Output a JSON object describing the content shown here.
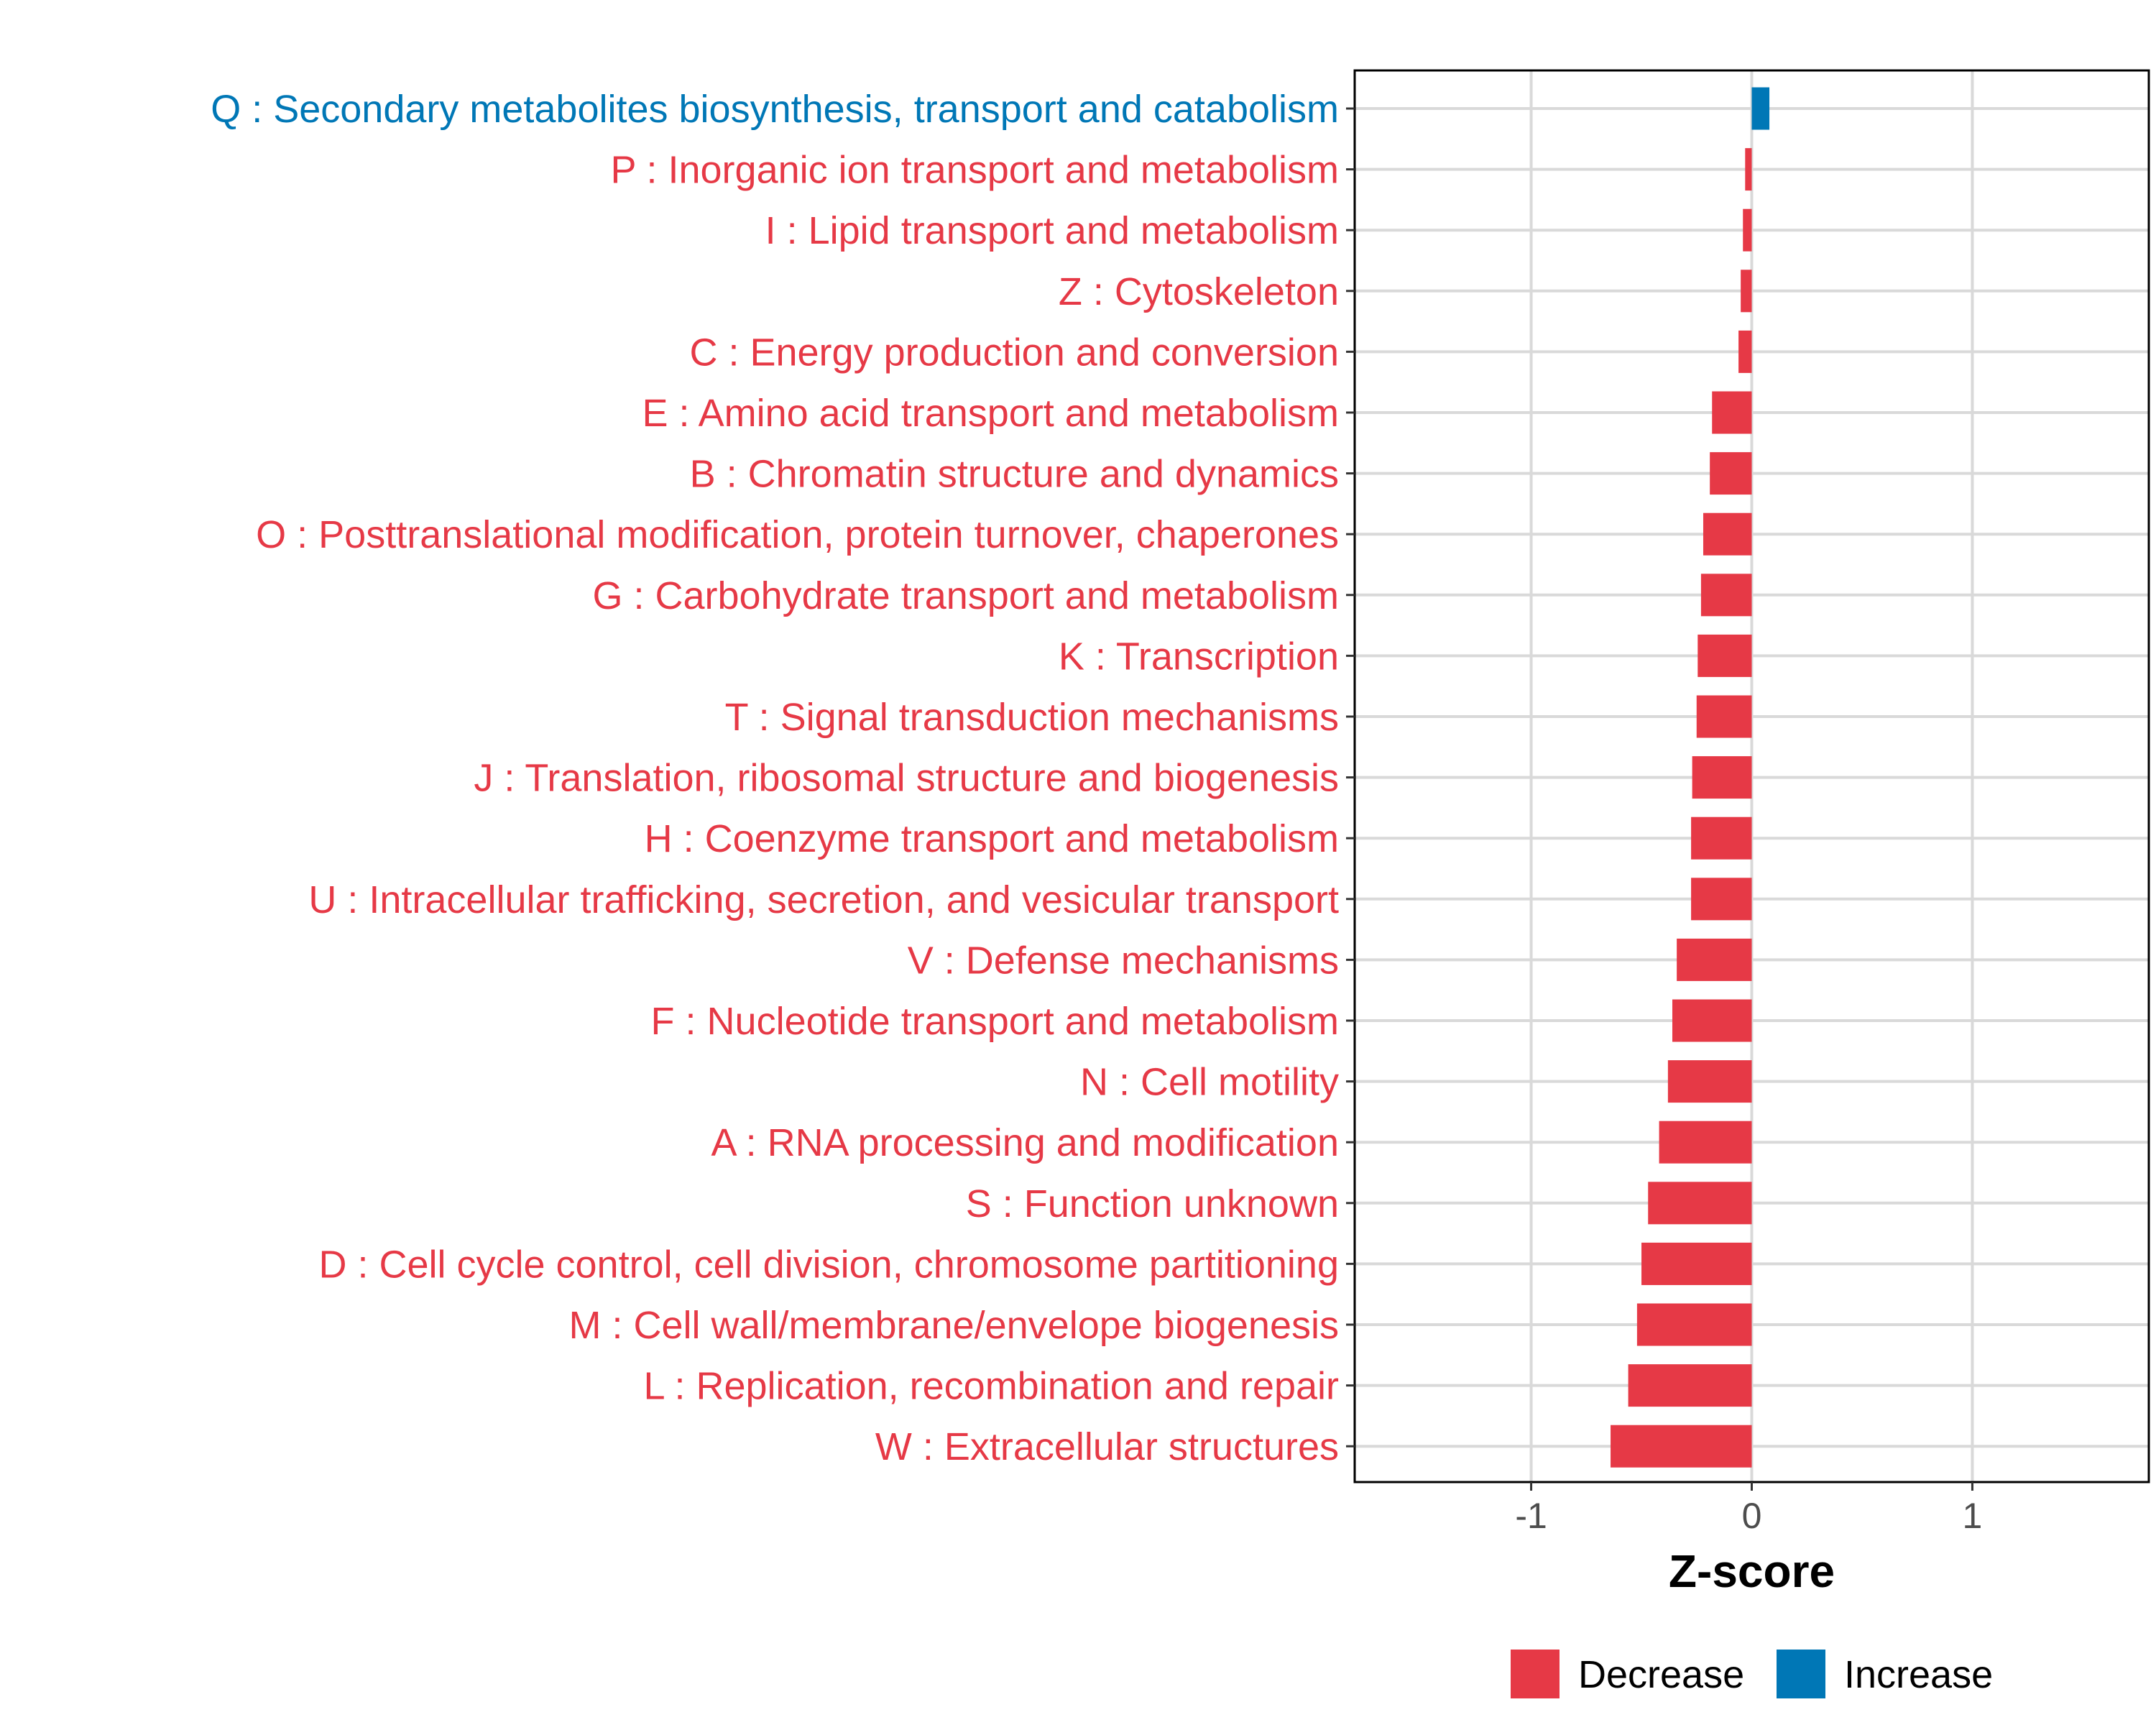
{
  "chart_data": {
    "type": "bar",
    "orientation": "horizontal",
    "xlabel": "Z-score",
    "ylabel": "",
    "xlim": [
      -1.8,
      1.8
    ],
    "xticks": [
      -1,
      0,
      1
    ],
    "xtick_labels": [
      "-1",
      "0",
      "1"
    ],
    "grid": true,
    "colors": {
      "Decrease": "#E63946",
      "Increase": "#0077B6"
    },
    "legend": {
      "position": "bottom",
      "entries": [
        {
          "label": "Decrease",
          "color": "#E63946"
        },
        {
          "label": "Increase",
          "color": "#0077B6"
        }
      ]
    },
    "categories": [
      {
        "label": "Q : Secondary metabolites biosynthesis, transport and catabolism",
        "value": 0.08,
        "direction": "Increase"
      },
      {
        "label": "P : Inorganic ion transport and metabolism",
        "value": -0.03,
        "direction": "Decrease"
      },
      {
        "label": "I : Lipid transport and metabolism",
        "value": -0.04,
        "direction": "Decrease"
      },
      {
        "label": "Z : Cytoskeleton",
        "value": -0.05,
        "direction": "Decrease"
      },
      {
        "label": "C : Energy production and conversion",
        "value": -0.06,
        "direction": "Decrease"
      },
      {
        "label": "E : Amino acid transport and metabolism",
        "value": -0.18,
        "direction": "Decrease"
      },
      {
        "label": "B : Chromatin structure and dynamics",
        "value": -0.19,
        "direction": "Decrease"
      },
      {
        "label": "O : Posttranslational modification, protein turnover, chaperones",
        "value": -0.22,
        "direction": "Decrease"
      },
      {
        "label": "G : Carbohydrate transport and metabolism",
        "value": -0.23,
        "direction": "Decrease"
      },
      {
        "label": "K : Transcription",
        "value": -0.245,
        "direction": "Decrease"
      },
      {
        "label": "T : Signal transduction mechanisms",
        "value": -0.25,
        "direction": "Decrease"
      },
      {
        "label": "J : Translation, ribosomal structure and biogenesis",
        "value": -0.27,
        "direction": "Decrease"
      },
      {
        "label": "H : Coenzyme transport and metabolism",
        "value": -0.275,
        "direction": "Decrease"
      },
      {
        "label": "U : Intracellular trafficking, secretion, and vesicular transport",
        "value": -0.275,
        "direction": "Decrease"
      },
      {
        "label": "V : Defense mechanisms",
        "value": -0.34,
        "direction": "Decrease"
      },
      {
        "label": "F : Nucleotide transport and metabolism",
        "value": -0.36,
        "direction": "Decrease"
      },
      {
        "label": "N : Cell motility",
        "value": -0.38,
        "direction": "Decrease"
      },
      {
        "label": "A : RNA processing and modification",
        "value": -0.42,
        "direction": "Decrease"
      },
      {
        "label": "S : Function unknown",
        "value": -0.47,
        "direction": "Decrease"
      },
      {
        "label": "D : Cell cycle control, cell division, chromosome partitioning",
        "value": -0.5,
        "direction": "Decrease"
      },
      {
        "label": "M : Cell wall/membrane/envelope biogenesis",
        "value": -0.52,
        "direction": "Decrease"
      },
      {
        "label": "L : Replication, recombination and repair",
        "value": -0.56,
        "direction": "Decrease"
      },
      {
        "label": "W : Extracellular structures",
        "value": -0.64,
        "direction": "Decrease"
      }
    ]
  }
}
